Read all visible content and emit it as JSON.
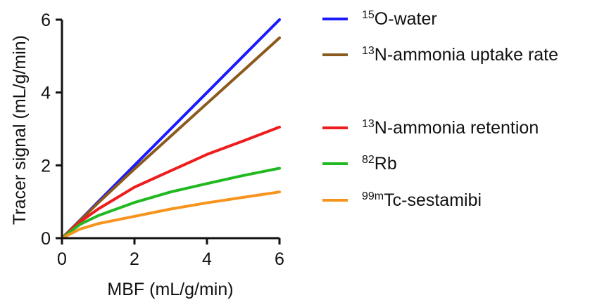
{
  "chart_data": {
    "type": "line",
    "xlabel": "MBF (mL/g/min)",
    "ylabel": "Tracer signal (mL/g/min)",
    "xlim": [
      0,
      6
    ],
    "ylim": [
      0,
      6
    ],
    "xticks": [
      "0",
      "2",
      "4",
      "6"
    ],
    "yticks": [
      "0",
      "2",
      "4",
      "6"
    ],
    "grid": false,
    "legend_position": "right",
    "series": [
      {
        "name_prefix": "15",
        "name_rest": "O-water",
        "color": "#1a1aff",
        "x": [
          0,
          0.5,
          1,
          2,
          3,
          4,
          5,
          6
        ],
        "y": [
          0,
          0.5,
          1,
          2,
          3,
          4,
          5,
          6
        ]
      },
      {
        "name_prefix": "13",
        "name_rest": "N-ammonia uptake rate",
        "color": "#8b5a1e",
        "x": [
          0,
          0.5,
          1,
          2,
          3,
          4,
          5,
          6
        ],
        "y": [
          0,
          0.49,
          0.97,
          1.9,
          2.8,
          3.7,
          4.6,
          5.5
        ]
      },
      {
        "name_prefix": "13",
        "name_rest": "N-ammonia retention",
        "color": "#ee1c1c",
        "x": [
          0,
          0.5,
          1,
          2,
          3,
          4,
          5,
          6
        ],
        "y": [
          0,
          0.45,
          0.8,
          1.4,
          1.85,
          2.3,
          2.67,
          3.05
        ]
      },
      {
        "name_prefix": "82",
        "name_rest": "Rb",
        "color": "#21b921",
        "x": [
          0,
          0.5,
          1,
          2,
          3,
          4,
          5,
          6
        ],
        "y": [
          0,
          0.38,
          0.62,
          0.98,
          1.27,
          1.5,
          1.72,
          1.92
        ]
      },
      {
        "name_prefix": "99m",
        "name_rest": "Tc-sestamibi",
        "color": "#f7941d",
        "x": [
          0,
          0.5,
          1,
          2,
          3,
          4,
          5,
          6
        ],
        "y": [
          0,
          0.25,
          0.4,
          0.6,
          0.8,
          0.97,
          1.12,
          1.27
        ]
      }
    ]
  }
}
